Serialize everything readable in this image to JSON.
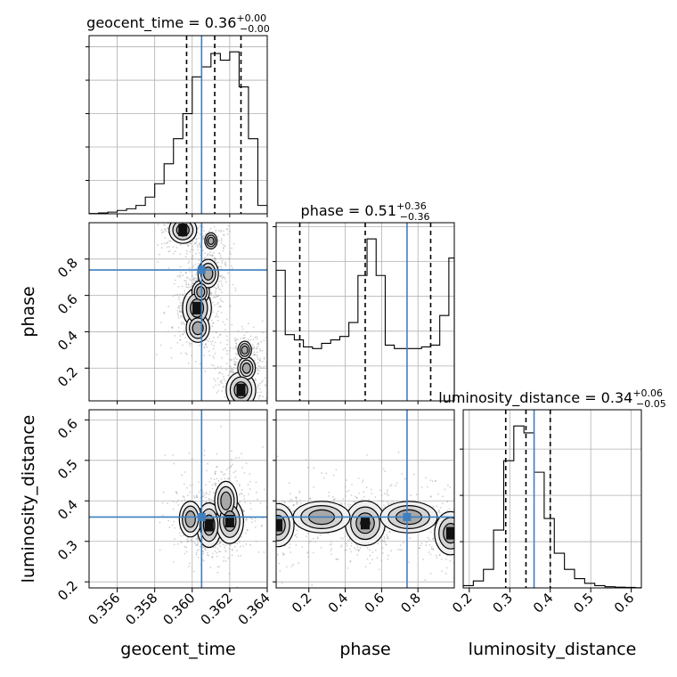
{
  "chart_data": {
    "type": "corner",
    "parameters": [
      "geocent_time",
      "phase",
      "luminosity_distance"
    ],
    "truth": {
      "geocent_time": 0.3605,
      "phase": 0.74,
      "luminosity_distance": 0.36
    },
    "truth_color": "#3f7fbf",
    "ranges": {
      "geocent_time": [
        0.3545,
        0.364
      ],
      "phase": [
        0.02,
        1.0
      ],
      "luminosity_distance": [
        0.185,
        0.625
      ]
    },
    "ticks": {
      "geocent_time": {
        "values": [
          0.356,
          0.358,
          0.36,
          0.362,
          0.364
        ],
        "labels": [
          "0.356",
          "0.358",
          "0.360",
          "0.362",
          "0.364"
        ]
      },
      "phase": {
        "values": [
          0.2,
          0.4,
          0.6,
          0.8
        ],
        "labels": [
          "0.2",
          "0.4",
          "0.6",
          "0.8"
        ]
      },
      "luminosity_distance": {
        "values": [
          0.2,
          0.3,
          0.4,
          0.5,
          0.6
        ],
        "labels": [
          "0.2",
          "0.3",
          "0.4",
          "0.5",
          "0.6"
        ]
      }
    },
    "titles": [
      {
        "param": "geocent_time",
        "main": "geocent_time = 0.36",
        "plus": "+0.00",
        "minus": "−0.00"
      },
      {
        "param": "phase",
        "main": "phase = 0.51",
        "plus": "+0.36",
        "minus": "−0.36"
      },
      {
        "param": "luminosity_distance",
        "main": "luminosity_distance = 0.34",
        "plus": "+0.06",
        "minus": "−0.05"
      }
    ],
    "quantiles": {
      "geocent_time": [
        0.3597,
        0.3612,
        0.3626
      ],
      "phase": [
        0.15,
        0.51,
        0.87
      ],
      "luminosity_distance": [
        0.29,
        0.34,
        0.4
      ]
    },
    "histograms": {
      "geocent_time": {
        "edges": [
          0.3545,
          0.355,
          0.3555,
          0.356,
          0.3565,
          0.357,
          0.3575,
          0.358,
          0.3585,
          0.359,
          0.3595,
          0.36,
          0.3605,
          0.361,
          0.3615,
          0.362,
          0.3625,
          0.363,
          0.3635,
          0.364
        ],
        "counts": [
          0.2,
          0.5,
          1,
          2,
          3,
          5,
          10,
          18,
          30,
          45,
          60,
          82,
          88,
          96,
          92,
          97,
          76,
          45,
          5
        ]
      },
      "phase": {
        "edges": [
          0.02,
          0.07,
          0.12,
          0.17,
          0.22,
          0.27,
          0.32,
          0.37,
          0.42,
          0.47,
          0.52,
          0.57,
          0.62,
          0.67,
          0.72,
          0.77,
          0.82,
          0.87,
          0.92,
          0.97,
          1.0
        ],
        "counts": [
          75,
          38,
          35,
          31,
          30,
          33,
          35,
          37,
          45,
          72,
          93,
          72,
          32,
          30,
          30,
          30,
          31,
          32,
          49,
          82
        ]
      },
      "luminosity_distance": {
        "edges": [
          0.185,
          0.21,
          0.235,
          0.26,
          0.285,
          0.31,
          0.335,
          0.36,
          0.385,
          0.41,
          0.435,
          0.46,
          0.485,
          0.51,
          0.535,
          0.56,
          0.585,
          0.61,
          0.625
        ],
        "counts": [
          1,
          3,
          8,
          25,
          55,
          70,
          67,
          50,
          30,
          15,
          8,
          4,
          2,
          1,
          0.5,
          0.3,
          0.2,
          0.1
        ]
      }
    },
    "blobs": {
      "phase|geocent_time": [
        {
          "x": 0.36025,
          "y": 0.53,
          "sx": 0.00035,
          "sy": 0.05,
          "w": 1.0
        },
        {
          "x": 0.36045,
          "y": 0.62,
          "sx": 0.0003,
          "sy": 0.04,
          "w": 0.5
        },
        {
          "x": 0.36085,
          "y": 0.72,
          "sx": 0.00035,
          "sy": 0.05,
          "w": 0.5
        },
        {
          "x": 0.3603,
          "y": 0.42,
          "sx": 0.0004,
          "sy": 0.05,
          "w": 0.5
        },
        {
          "x": 0.3626,
          "y": 0.08,
          "sx": 0.0004,
          "sy": 0.05,
          "w": 0.8
        },
        {
          "x": 0.3629,
          "y": 0.2,
          "sx": 0.0003,
          "sy": 0.04,
          "w": 0.5
        },
        {
          "x": 0.3628,
          "y": 0.3,
          "sx": 0.0003,
          "sy": 0.04,
          "w": 0.3
        },
        {
          "x": 0.3595,
          "y": 0.96,
          "sx": 0.0004,
          "sy": 0.04,
          "w": 0.7
        },
        {
          "x": 0.361,
          "y": 0.9,
          "sx": 0.0003,
          "sy": 0.04,
          "w": 0.25
        }
      ],
      "luminosity_distance|geocent_time": [
        {
          "x": 0.3609,
          "y": 0.34,
          "sx": 0.0003,
          "sy": 0.025,
          "w": 1.0
        },
        {
          "x": 0.362,
          "y": 0.35,
          "sx": 0.0004,
          "sy": 0.03,
          "w": 0.7
        },
        {
          "x": 0.3599,
          "y": 0.355,
          "sx": 0.0004,
          "sy": 0.03,
          "w": 0.45
        },
        {
          "x": 0.3618,
          "y": 0.4,
          "sx": 0.0005,
          "sy": 0.04,
          "w": 0.3
        }
      ],
      "luminosity_distance|phase": [
        {
          "x": 0.51,
          "y": 0.345,
          "sx": 0.05,
          "sy": 0.025,
          "w": 1.0
        },
        {
          "x": 0.03,
          "y": 0.34,
          "sx": 0.05,
          "sy": 0.03,
          "w": 0.65
        },
        {
          "x": 0.98,
          "y": 0.32,
          "sx": 0.05,
          "sy": 0.03,
          "w": 0.65
        },
        {
          "x": 0.27,
          "y": 0.36,
          "sx": 0.12,
          "sy": 0.03,
          "w": 0.35
        },
        {
          "x": 0.75,
          "y": 0.36,
          "sx": 0.12,
          "sy": 0.03,
          "w": 0.35
        }
      ]
    }
  }
}
